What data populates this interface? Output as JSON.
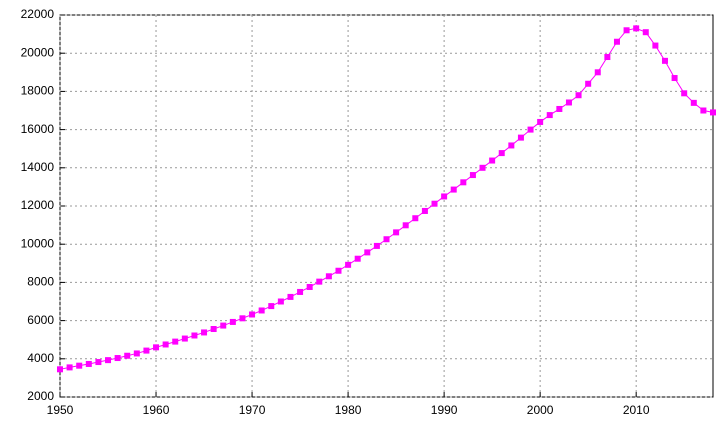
{
  "chart_data": {
    "type": "line",
    "x": [
      1950,
      1951,
      1952,
      1953,
      1954,
      1955,
      1956,
      1957,
      1958,
      1959,
      1960,
      1961,
      1962,
      1963,
      1964,
      1965,
      1966,
      1967,
      1968,
      1969,
      1970,
      1971,
      1972,
      1973,
      1974,
      1975,
      1976,
      1977,
      1978,
      1979,
      1980,
      1981,
      1982,
      1983,
      1984,
      1985,
      1986,
      1987,
      1988,
      1989,
      1990,
      1991,
      1992,
      1993,
      1994,
      1995,
      1996,
      1997,
      1998,
      1999,
      2000,
      2001,
      2002,
      2003,
      2004,
      2005,
      2006,
      2007,
      2008,
      2009,
      2010,
      2011,
      2012,
      2013,
      2014,
      2015,
      2016,
      2017,
      2018
    ],
    "series": [
      {
        "color": "#ff00ff",
        "values": [
          3450,
          3550,
          3640,
          3730,
          3830,
          3930,
          4040,
          4160,
          4280,
          4430,
          4600,
          4750,
          4900,
          5060,
          5220,
          5380,
          5560,
          5740,
          5930,
          6120,
          6320,
          6530,
          6760,
          7000,
          7240,
          7500,
          7760,
          8040,
          8320,
          8610,
          8920,
          9240,
          9570,
          9910,
          10260,
          10620,
          10990,
          11360,
          11740,
          12120,
          12500,
          12860,
          13240,
          13620,
          14000,
          14380,
          14770,
          15170,
          15580,
          16000,
          16400,
          16760,
          17080,
          17420,
          17800,
          18400,
          19000,
          19800,
          20600,
          21200,
          21300,
          21100,
          20400,
          19600,
          18700,
          17900,
          17400,
          17000,
          16900
        ]
      }
    ],
    "xlim": [
      1950,
      2018
    ],
    "xticks": [
      1950,
      1960,
      1970,
      1980,
      1990,
      2000,
      2010
    ],
    "ylim": [
      2000,
      22000
    ],
    "yticks": [
      2000,
      4000,
      6000,
      8000,
      10000,
      12000,
      14000,
      16000,
      18000,
      20000,
      22000
    ],
    "grid": true
  }
}
